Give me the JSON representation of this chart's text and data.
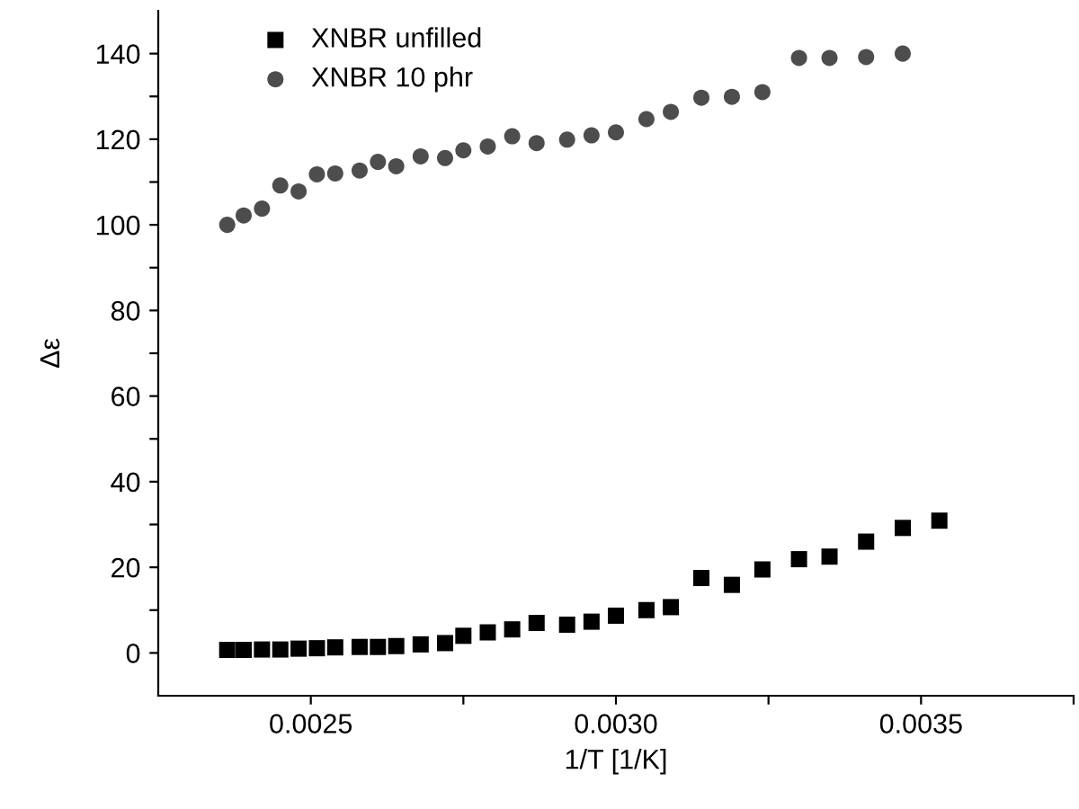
{
  "chart_data": {
    "type": "scatter",
    "xlabel": "1/T [1/K]",
    "ylabel": "Δε",
    "xlim": [
      0.00225,
      0.00375
    ],
    "xticks": [
      {
        "value": 0.0025,
        "label": "0.0025"
      },
      {
        "value": 0.00275,
        "label": null
      },
      {
        "value": 0.003,
        "label": "0.0030"
      },
      {
        "value": 0.00325,
        "label": null
      },
      {
        "value": 0.0035,
        "label": "0.0035"
      },
      {
        "value": 0.00375,
        "label": null
      }
    ],
    "ylim": [
      -10,
      150
    ],
    "yticks": [
      0,
      {
        "value": 10,
        "label": null
      },
      20,
      {
        "value": 30,
        "label": null
      },
      40,
      {
        "value": 50,
        "label": null
      },
      60,
      {
        "value": 70,
        "label": null
      },
      80,
      {
        "value": 90,
        "label": null
      },
      100,
      {
        "value": 110,
        "label": null
      },
      120,
      {
        "value": 130,
        "label": null
      },
      140
    ],
    "grid": false,
    "legend": "top left",
    "series": [
      {
        "name": "XNBR unfilled",
        "color": "#000000",
        "marker": "square",
        "x": [
          0.002363,
          0.00239,
          0.00242,
          0.00245,
          0.00248,
          0.00251,
          0.00254,
          0.00258,
          0.00261,
          0.00264,
          0.00268,
          0.00272,
          0.00275,
          0.00279,
          0.00283,
          0.00287,
          0.00292,
          0.00296,
          0.003,
          0.00305,
          0.00309,
          0.00314,
          0.00319,
          0.00324,
          0.0033,
          0.00335,
          0.00341,
          0.00347,
          0.00353
        ],
        "values": [
          0.7,
          0.7,
          0.8,
          0.8,
          1.0,
          1.1,
          1.3,
          1.4,
          1.4,
          1.6,
          2.0,
          2.3,
          4.0,
          4.8,
          5.5,
          7.0,
          6.6,
          7.3,
          8.7,
          10.0,
          10.7,
          17.5,
          15.9,
          19.5,
          21.9,
          22.5,
          26.0,
          29.2,
          30.9
        ]
      },
      {
        "name": "XNBR 10 phr",
        "color": "#4d4d4d",
        "marker": "circle",
        "x": [
          0.002363,
          0.00239,
          0.00242,
          0.00245,
          0.00248,
          0.00251,
          0.00254,
          0.00258,
          0.00261,
          0.00264,
          0.00268,
          0.00272,
          0.00275,
          0.00279,
          0.00283,
          0.00287,
          0.00292,
          0.00296,
          0.003,
          0.00305,
          0.00309,
          0.00314,
          0.00319,
          0.00324,
          0.0033,
          0.00335,
          0.00341,
          0.00347
        ],
        "values": [
          100.0,
          102.2,
          103.8,
          109.2,
          107.8,
          111.8,
          112.0,
          112.7,
          114.7,
          113.7,
          116.0,
          115.6,
          117.4,
          118.3,
          120.7,
          119.1,
          119.9,
          120.9,
          121.6,
          124.7,
          126.4,
          129.7,
          129.9,
          131.0,
          139.0,
          139.0,
          139.2,
          140.0
        ]
      }
    ]
  }
}
